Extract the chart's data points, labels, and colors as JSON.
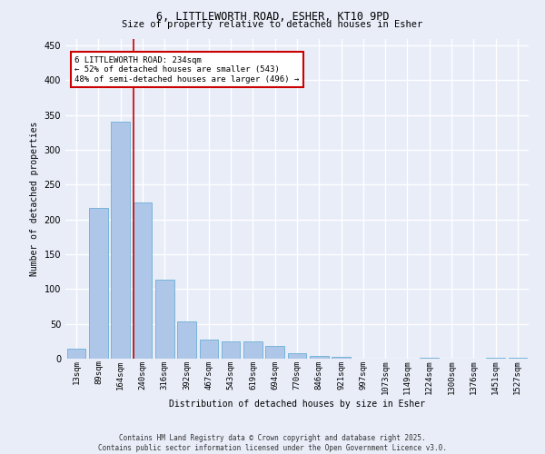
{
  "title_line1": "6, LITTLEWORTH ROAD, ESHER, KT10 9PD",
  "title_line2": "Size of property relative to detached houses in Esher",
  "xlabel": "Distribution of detached houses by size in Esher",
  "ylabel": "Number of detached properties",
  "categories": [
    "13sqm",
    "89sqm",
    "164sqm",
    "240sqm",
    "316sqm",
    "392sqm",
    "467sqm",
    "543sqm",
    "619sqm",
    "694sqm",
    "770sqm",
    "846sqm",
    "921sqm",
    "997sqm",
    "1073sqm",
    "1149sqm",
    "1224sqm",
    "1300sqm",
    "1376sqm",
    "1451sqm",
    "1527sqm"
  ],
  "values": [
    15,
    216,
    340,
    224,
    113,
    54,
    28,
    25,
    25,
    18,
    8,
    4,
    3,
    0,
    0,
    0,
    1,
    0,
    0,
    1,
    1
  ],
  "bar_color": "#aec6e8",
  "bar_edge_color": "#6baed6",
  "vline_color": "#cc0000",
  "annotation_text": "6 LITTLEWORTH ROAD: 234sqm\n← 52% of detached houses are smaller (543)\n48% of semi-detached houses are larger (496) →",
  "annotation_box_color": "#ffffff",
  "annotation_border_color": "#cc0000",
  "ylim": [
    0,
    460
  ],
  "background_color": "#e8edf8",
  "grid_color": "#ffffff",
  "footer_text": "Contains HM Land Registry data © Crown copyright and database right 2025.\nContains public sector information licensed under the Open Government Licence v3.0."
}
